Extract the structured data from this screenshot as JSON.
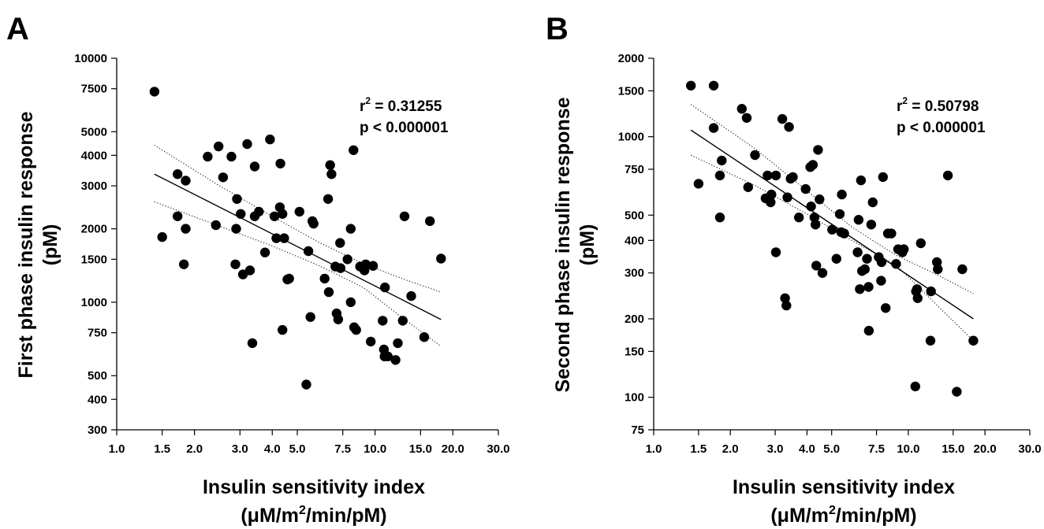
{
  "chart_data": [
    {
      "panel": "A",
      "type": "scatter",
      "xlabel": "Insulin sensitivity index",
      "xlabel_unit_parts": [
        "(μM/m",
        "2",
        "/min/pM)"
      ],
      "ylabel_lines": [
        "First phase insulin response",
        "(pM)"
      ],
      "x_scale": "log",
      "y_scale": "log",
      "xlim": [
        1.0,
        30.0
      ],
      "ylim": [
        300,
        10000
      ],
      "x_ticks": [
        1.0,
        1.5,
        2.0,
        3.0,
        4.0,
        5.0,
        7.5,
        10.0,
        15.0,
        20.0,
        30.0
      ],
      "x_tick_labels": [
        "1.0",
        "1.5",
        "2.0",
        "3.0",
        "4.0",
        "5.0",
        "7.5",
        "10.0",
        "15.0",
        "20.0",
        "30.0"
      ],
      "y_ticks": [
        300,
        400,
        500,
        750,
        1000,
        1500,
        2000,
        3000,
        4000,
        5000,
        7500,
        10000
      ],
      "y_tick_labels": [
        "300",
        "400",
        "500",
        "750",
        "1000",
        "1500",
        "2000",
        "3000",
        "4000",
        "5000",
        "7500",
        "10000"
      ],
      "stats": {
        "r2_prefix": "r",
        "r2_sup": "2",
        "r2_value": " = 0.31255",
        "p_text": "p < 0.000001"
      },
      "regression": {
        "x": [
          1.4,
          18.0
        ],
        "y": [
          3350,
          850
        ]
      },
      "ci_upper": {
        "x": [
          1.4,
          2.5,
          4.0,
          6.0,
          9.0,
          13.0,
          18.0
        ],
        "y": [
          4400,
          3000,
          2250,
          1770,
          1440,
          1240,
          1100
        ]
      },
      "ci_lower": {
        "x": [
          1.4,
          2.5,
          4.0,
          6.0,
          9.0,
          13.0,
          18.0
        ],
        "y": [
          2580,
          2050,
          1700,
          1420,
          1150,
          850,
          660
        ]
      },
      "points": [
        [
          1.4,
          7300
        ],
        [
          1.5,
          1850
        ],
        [
          1.72,
          3350
        ],
        [
          1.72,
          2250
        ],
        [
          1.82,
          1430
        ],
        [
          1.85,
          3150
        ],
        [
          1.85,
          2000
        ],
        [
          2.25,
          3950
        ],
        [
          2.42,
          2070
        ],
        [
          2.48,
          4350
        ],
        [
          2.58,
          3250
        ],
        [
          2.78,
          3950
        ],
        [
          2.9,
          2000
        ],
        [
          2.88,
          1430
        ],
        [
          2.92,
          2650
        ],
        [
          3.02,
          2300
        ],
        [
          3.08,
          1300
        ],
        [
          3.2,
          4450
        ],
        [
          3.28,
          1350
        ],
        [
          3.35,
          680
        ],
        [
          3.42,
          3600
        ],
        [
          3.42,
          2250
        ],
        [
          3.55,
          2350
        ],
        [
          3.75,
          1600
        ],
        [
          3.92,
          4650
        ],
        [
          4.08,
          2250
        ],
        [
          4.15,
          1830
        ],
        [
          4.28,
          2450
        ],
        [
          4.3,
          3700
        ],
        [
          4.38,
          2300
        ],
        [
          4.38,
          770
        ],
        [
          4.45,
          1830
        ],
        [
          4.58,
          1240
        ],
        [
          4.65,
          1250
        ],
        [
          5.1,
          2350
        ],
        [
          5.42,
          460
        ],
        [
          5.52,
          1620
        ],
        [
          5.62,
          870
        ],
        [
          5.72,
          2150
        ],
        [
          5.78,
          2100
        ],
        [
          6.38,
          1250
        ],
        [
          6.58,
          2650
        ],
        [
          6.62,
          1100
        ],
        [
          6.7,
          3650
        ],
        [
          6.78,
          3350
        ],
        [
          7.02,
          1400
        ],
        [
          7.1,
          900
        ],
        [
          7.2,
          850
        ],
        [
          7.32,
          1750
        ],
        [
          7.35,
          1380
        ],
        [
          7.82,
          1500
        ],
        [
          8.05,
          2000
        ],
        [
          8.05,
          1000
        ],
        [
          8.25,
          4200
        ],
        [
          8.3,
          790
        ],
        [
          8.45,
          770
        ],
        [
          8.75,
          1400
        ],
        [
          9.1,
          1350
        ],
        [
          9.2,
          1430
        ],
        [
          9.62,
          690
        ],
        [
          9.82,
          1410
        ],
        [
          10.7,
          840
        ],
        [
          10.82,
          640
        ],
        [
          10.88,
          600
        ],
        [
          10.92,
          1150
        ],
        [
          11.2,
          600
        ],
        [
          12.0,
          580
        ],
        [
          12.25,
          680
        ],
        [
          12.8,
          840
        ],
        [
          13.0,
          2250
        ],
        [
          13.8,
          1060
        ],
        [
          15.5,
          720
        ],
        [
          16.3,
          2150
        ],
        [
          18.0,
          1510
        ]
      ]
    },
    {
      "panel": "B",
      "type": "scatter",
      "xlabel": "Insulin sensitivity index",
      "xlabel_unit_parts": [
        "(μM/m",
        "2",
        "/min/pM)"
      ],
      "ylabel_lines": [
        "Second phase insulin response",
        "(pM)"
      ],
      "x_scale": "log",
      "y_scale": "log",
      "xlim": [
        1.0,
        30.0
      ],
      "ylim": [
        75,
        2000
      ],
      "x_ticks": [
        1.0,
        1.5,
        2.0,
        3.0,
        4.0,
        5.0,
        7.5,
        10.0,
        15.0,
        20.0,
        30.0
      ],
      "x_tick_labels": [
        "1.0",
        "1.5",
        "2.0",
        "3.0",
        "4.0",
        "5.0",
        "7.5",
        "10.0",
        "15.0",
        "20.0",
        "30.0"
      ],
      "y_ticks": [
        75,
        100,
        150,
        200,
        300,
        400,
        500,
        750,
        1000,
        1500,
        2000
      ],
      "y_tick_labels": [
        "75",
        "100",
        "150",
        "200",
        "300",
        "400",
        "500",
        "750",
        "1000",
        "1500",
        "2000"
      ],
      "stats": {
        "r2_prefix": "r",
        "r2_sup": "2",
        "r2_value": " = 0.50798",
        "p_text": "p < 0.000001"
      },
      "regression": {
        "x": [
          1.4,
          18.0
        ],
        "y": [
          1060,
          200
        ]
      },
      "ci_upper": {
        "x": [
          1.4,
          2.5,
          4.0,
          6.0,
          9.0,
          13.0,
          18.0
        ],
        "y": [
          1330,
          900,
          620,
          450,
          350,
          295,
          250
        ]
      },
      "ci_lower": {
        "x": [
          1.4,
          2.5,
          4.0,
          6.0,
          9.0,
          13.0,
          18.0
        ],
        "y": [
          850,
          650,
          505,
          400,
          320,
          225,
          165
        ]
      },
      "points": [
        [
          1.4,
          1570
        ],
        [
          1.5,
          660
        ],
        [
          1.72,
          1570
        ],
        [
          1.72,
          1080
        ],
        [
          1.82,
          490
        ],
        [
          1.82,
          710
        ],
        [
          1.85,
          810
        ],
        [
          2.22,
          1280
        ],
        [
          2.32,
          1180
        ],
        [
          2.35,
          640
        ],
        [
          2.5,
          850
        ],
        [
          2.75,
          580
        ],
        [
          2.8,
          710
        ],
        [
          2.88,
          560
        ],
        [
          2.9,
          600
        ],
        [
          3.02,
          710
        ],
        [
          3.02,
          360
        ],
        [
          3.2,
          1170
        ],
        [
          3.28,
          240
        ],
        [
          3.32,
          225
        ],
        [
          3.35,
          585
        ],
        [
          3.4,
          1090
        ],
        [
          3.45,
          690
        ],
        [
          3.52,
          700
        ],
        [
          3.72,
          490
        ],
        [
          3.95,
          630
        ],
        [
          4.12,
          765
        ],
        [
          4.15,
          540
        ],
        [
          4.22,
          780
        ],
        [
          4.28,
          490
        ],
        [
          4.32,
          460
        ],
        [
          4.35,
          320
        ],
        [
          4.42,
          890
        ],
        [
          4.48,
          575
        ],
        [
          4.6,
          300
        ],
        [
          5.02,
          440
        ],
        [
          5.22,
          340
        ],
        [
          5.38,
          505
        ],
        [
          5.45,
          430
        ],
        [
          5.48,
          600
        ],
        [
          5.6,
          425
        ],
        [
          6.32,
          360
        ],
        [
          6.38,
          480
        ],
        [
          6.45,
          260
        ],
        [
          6.52,
          680
        ],
        [
          6.58,
          305
        ],
        [
          6.75,
          310
        ],
        [
          6.88,
          340
        ],
        [
          6.98,
          265
        ],
        [
          7.0,
          180
        ],
        [
          7.15,
          460
        ],
        [
          7.25,
          560
        ],
        [
          7.65,
          345
        ],
        [
          7.82,
          280
        ],
        [
          7.85,
          330
        ],
        [
          7.95,
          700
        ],
        [
          8.15,
          220
        ],
        [
          8.32,
          425
        ],
        [
          8.58,
          425
        ],
        [
          8.95,
          325
        ],
        [
          9.12,
          370
        ],
        [
          9.48,
          360
        ],
        [
          9.6,
          370
        ],
        [
          10.65,
          110
        ],
        [
          10.72,
          255
        ],
        [
          10.82,
          260
        ],
        [
          10.88,
          240
        ],
        [
          11.2,
          390
        ],
        [
          12.22,
          165
        ],
        [
          12.28,
          255
        ],
        [
          12.95,
          330
        ],
        [
          13.05,
          310
        ],
        [
          14.3,
          710
        ],
        [
          15.5,
          105
        ],
        [
          16.3,
          310
        ],
        [
          18.0,
          165
        ]
      ]
    }
  ]
}
